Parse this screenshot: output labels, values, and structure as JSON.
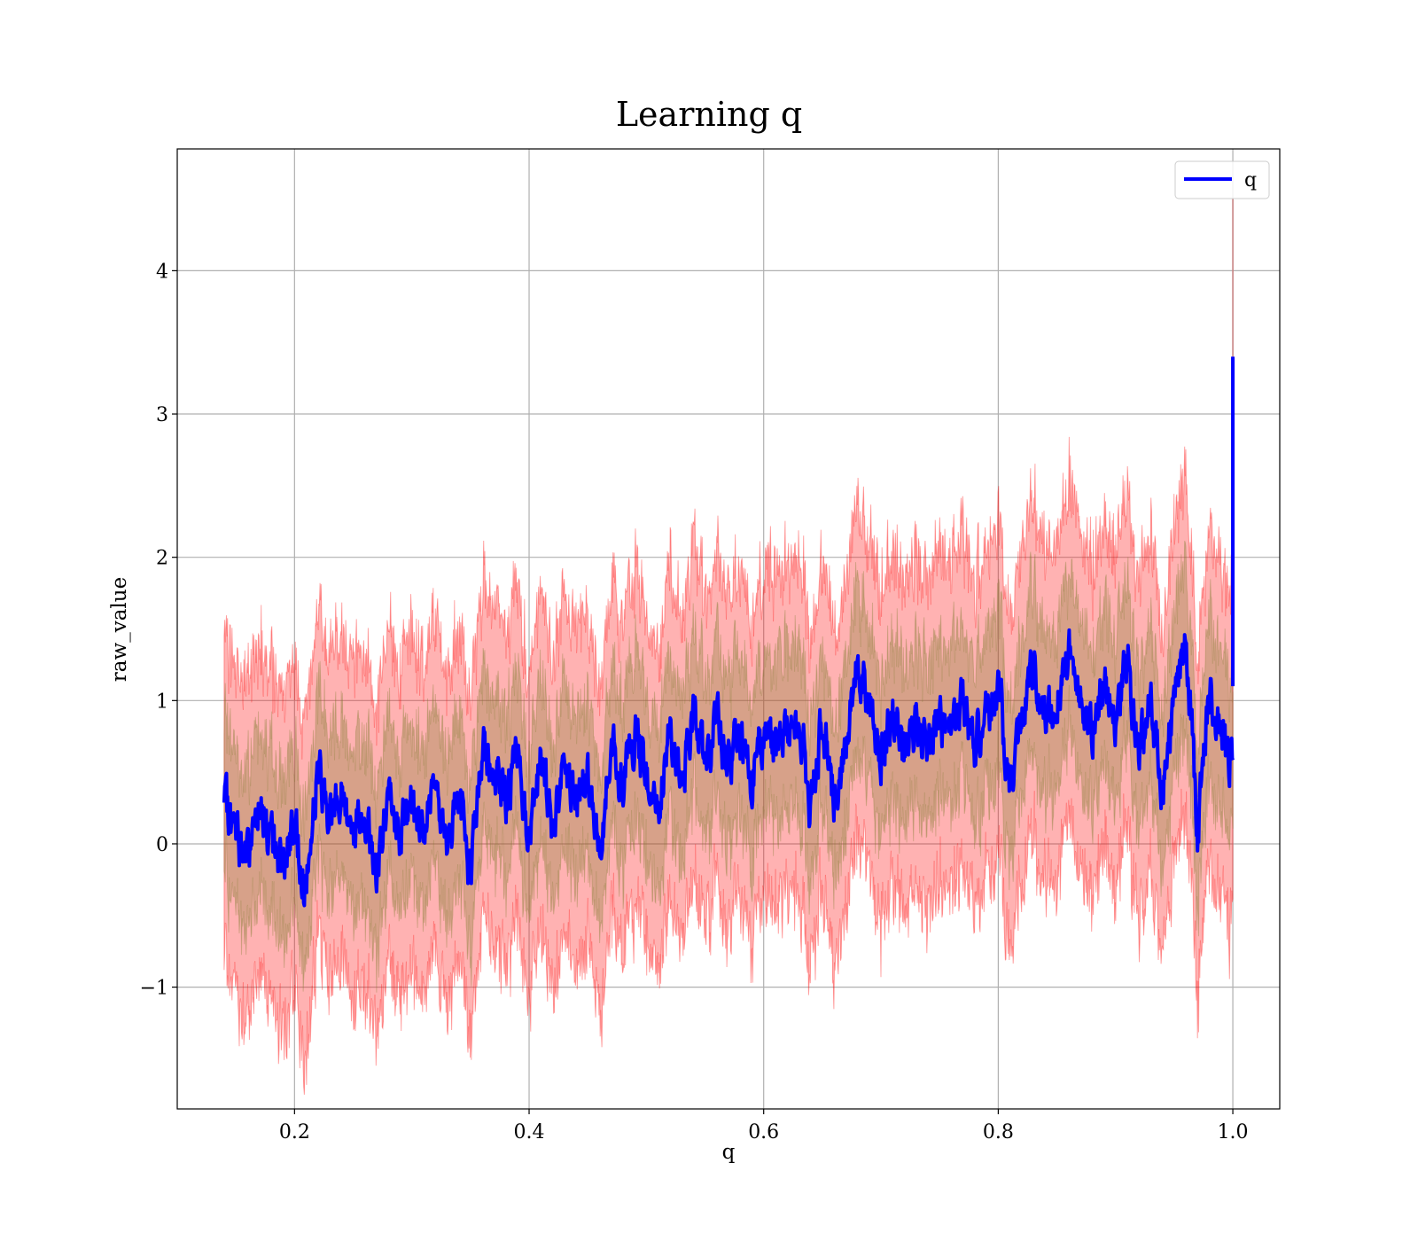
{
  "chart_data": {
    "type": "line",
    "title": "Learning q",
    "xlabel": "q",
    "ylabel": "raw_value",
    "xlim": [
      0.1,
      1.04
    ],
    "ylim": [
      -1.85,
      4.85
    ],
    "grid": true,
    "legend_position": "top-right",
    "x_ticks": [
      {
        "value": 0.2,
        "label": "0.2"
      },
      {
        "value": 0.4,
        "label": "0.4"
      },
      {
        "value": 0.6,
        "label": "0.6"
      },
      {
        "value": 0.8,
        "label": "0.8"
      },
      {
        "value": 1.0,
        "label": "1.0"
      }
    ],
    "y_ticks": [
      {
        "value": -1,
        "label": "−1"
      },
      {
        "value": 0,
        "label": "0"
      },
      {
        "value": 1,
        "label": "1"
      },
      {
        "value": 2,
        "label": "2"
      },
      {
        "value": 3,
        "label": "3"
      },
      {
        "value": 4,
        "label": "4"
      }
    ],
    "series": [
      {
        "name": "q",
        "color": "#0000ff",
        "x": [
          0.14,
          0.15,
          0.16,
          0.17,
          0.18,
          0.19,
          0.2,
          0.21,
          0.22,
          0.23,
          0.24,
          0.25,
          0.26,
          0.27,
          0.28,
          0.29,
          0.3,
          0.31,
          0.32,
          0.33,
          0.34,
          0.35,
          0.36,
          0.37,
          0.38,
          0.39,
          0.4,
          0.41,
          0.42,
          0.43,
          0.44,
          0.45,
          0.46,
          0.47,
          0.48,
          0.49,
          0.5,
          0.51,
          0.52,
          0.53,
          0.54,
          0.55,
          0.56,
          0.57,
          0.58,
          0.59,
          0.6,
          0.61,
          0.62,
          0.63,
          0.64,
          0.65,
          0.66,
          0.67,
          0.68,
          0.69,
          0.7,
          0.71,
          0.72,
          0.73,
          0.74,
          0.75,
          0.76,
          0.77,
          0.78,
          0.79,
          0.8,
          0.81,
          0.82,
          0.83,
          0.84,
          0.85,
          0.86,
          0.87,
          0.88,
          0.89,
          0.9,
          0.91,
          0.92,
          0.93,
          0.94,
          0.95,
          0.96,
          0.97,
          0.98,
          0.99,
          1.0
        ],
        "y": [
          0.26,
          0.05,
          -0.1,
          0.35,
          0.0,
          -0.1,
          0.1,
          -0.3,
          0.55,
          0.2,
          0.35,
          0.1,
          0.25,
          -0.2,
          0.3,
          0.1,
          0.25,
          0.1,
          0.6,
          -0.15,
          0.4,
          -0.25,
          0.7,
          0.5,
          0.3,
          0.6,
          0.05,
          0.6,
          0.15,
          0.55,
          0.35,
          0.5,
          -0.1,
          0.7,
          0.4,
          0.75,
          0.5,
          0.2,
          0.8,
          0.4,
          0.9,
          0.6,
          0.85,
          0.55,
          0.75,
          0.4,
          0.8,
          0.65,
          0.75,
          0.95,
          0.2,
          0.9,
          0.3,
          0.6,
          1.35,
          0.95,
          0.6,
          1.0,
          0.55,
          0.9,
          0.7,
          0.85,
          0.75,
          1.0,
          0.7,
          0.95,
          1.1,
          0.35,
          0.95,
          1.2,
          0.9,
          1.05,
          1.35,
          1.0,
          0.8,
          1.1,
          0.9,
          1.3,
          0.6,
          1.05,
          0.35,
          1.0,
          1.45,
          0.1,
          1.05,
          0.7,
          0.6
        ],
        "band_inner": 0.55,
        "band_outer": 1.15
      }
    ],
    "final_spike": {
      "x": 1.0,
      "y": [
        1.1,
        3.4
      ]
    },
    "band_spike_top": 4.5
  }
}
